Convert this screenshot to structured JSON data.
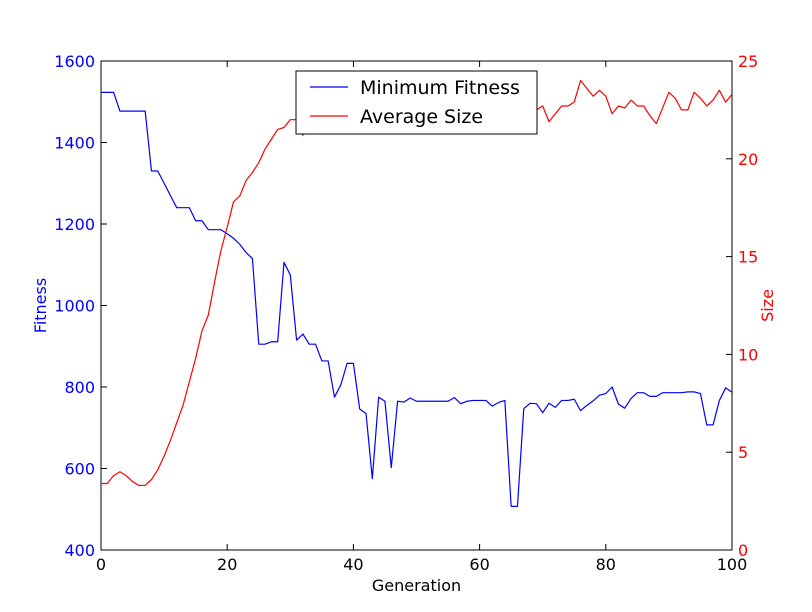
{
  "chart_data": {
    "type": "line",
    "xlabel": "Generation",
    "ylabel_left": "Fitness",
    "ylabel_right": "Size",
    "xlim": [
      0,
      100
    ],
    "ylim_left": [
      400,
      1600
    ],
    "ylim_right": [
      0,
      25
    ],
    "x_ticks": [
      0,
      20,
      40,
      60,
      80,
      100
    ],
    "y_ticks_left": [
      400,
      600,
      800,
      1000,
      1200,
      1400,
      1600
    ],
    "y_ticks_right": [
      0,
      5,
      10,
      15,
      20,
      25
    ],
    "grid": false,
    "legend_position": "top-center",
    "colors": {
      "left_axis": "#0000ff",
      "right_axis": "#ff0000",
      "frame": "#000000"
    },
    "series": [
      {
        "name": "Minimum Fitness",
        "axis": "left",
        "color": "#0000ff",
        "x": [
          0,
          1,
          2,
          3,
          4,
          5,
          6,
          7,
          8,
          9,
          10,
          11,
          12,
          13,
          14,
          15,
          16,
          17,
          18,
          19,
          20,
          21,
          22,
          23,
          24,
          25,
          26,
          27,
          28,
          29,
          30,
          31,
          32,
          33,
          34,
          35,
          36,
          37,
          38,
          39,
          40,
          41,
          42,
          43,
          44,
          45,
          46,
          47,
          48,
          49,
          50,
          51,
          52,
          53,
          54,
          55,
          56,
          57,
          58,
          59,
          60,
          61,
          62,
          63,
          64,
          65,
          66,
          67,
          68,
          69,
          70,
          71,
          72,
          73,
          74,
          75,
          76,
          77,
          78,
          79,
          80,
          81,
          82,
          83,
          84,
          85,
          86,
          87,
          88,
          89,
          90,
          91,
          92,
          93,
          94,
          95,
          96,
          97,
          98,
          99,
          100
        ],
        "y": [
          1523,
          1523,
          1523,
          1477,
          1477,
          1477,
          1477,
          1477,
          1330,
          1330,
          1300,
          1270,
          1240,
          1240,
          1240,
          1208,
          1208,
          1186,
          1186,
          1186,
          1176,
          1165,
          1150,
          1130,
          1115,
          905,
          905,
          911,
          911,
          1106,
          1075,
          915,
          930,
          905,
          905,
          864,
          864,
          775,
          805,
          858,
          858,
          746,
          735,
          575,
          775,
          765,
          602,
          765,
          763,
          773,
          765,
          765,
          765,
          765,
          765,
          765,
          774,
          759,
          765,
          767,
          767,
          767,
          753,
          762,
          767,
          507,
          507,
          747,
          760,
          759,
          737,
          760,
          750,
          767,
          767,
          770,
          742,
          755,
          766,
          780,
          784,
          800,
          758,
          748,
          772,
          786,
          786,
          777,
          777,
          786,
          786,
          786,
          786,
          788,
          788,
          784,
          707,
          707,
          767,
          798,
          787
        ]
      },
      {
        "name": "Average Size",
        "axis": "right",
        "color": "#ff0000",
        "x": [
          0,
          1,
          2,
          3,
          4,
          5,
          6,
          7,
          8,
          9,
          10,
          11,
          12,
          13,
          14,
          15,
          16,
          17,
          18,
          19,
          20,
          21,
          22,
          23,
          24,
          25,
          26,
          27,
          28,
          29,
          30,
          31,
          32,
          33,
          34,
          35,
          36,
          37,
          38,
          39,
          40,
          41,
          42,
          43,
          44,
          45,
          46,
          47,
          48,
          49,
          50,
          51,
          52,
          53,
          54,
          55,
          56,
          57,
          58,
          59,
          60,
          61,
          62,
          63,
          64,
          65,
          66,
          67,
          68,
          69,
          70,
          71,
          72,
          73,
          74,
          75,
          76,
          77,
          78,
          79,
          80,
          81,
          82,
          83,
          84,
          85,
          86,
          87,
          88,
          89,
          90,
          91,
          92,
          93,
          94,
          95,
          96,
          97,
          98,
          99,
          100
        ],
        "y": [
          3.4,
          3.4,
          3.8,
          4.0,
          3.8,
          3.5,
          3.3,
          3.3,
          3.6,
          4.1,
          4.8,
          5.6,
          6.5,
          7.4,
          8.6,
          9.8,
          11.2,
          12.0,
          13.7,
          15.3,
          16.5,
          17.8,
          18.1,
          18.9,
          19.3,
          19.8,
          20.5,
          21.0,
          21.5,
          21.6,
          22.0,
          22.0,
          21.2,
          22.6,
          22.4,
          23.1,
          22.9,
          23.3,
          23.4,
          23.7,
          23.9,
          23.8,
          24.1,
          23.9,
          22.8,
          21.8,
          21.6,
          21.8,
          22.4,
          22.4,
          22.5,
          22.5,
          23.0,
          23.1,
          22.7,
          22.6,
          22.8,
          22.9,
          23.1,
          23.2,
          23.0,
          22.8,
          23.3,
          23.8,
          24.2,
          23.1,
          23.2,
          22.6,
          22.6,
          22.5,
          22.7,
          21.9,
          22.3,
          22.7,
          22.7,
          22.9,
          24.0,
          23.6,
          23.2,
          23.5,
          23.2,
          22.3,
          22.7,
          22.6,
          23.0,
          22.7,
          22.7,
          22.2,
          21.8,
          22.6,
          23.4,
          23.1,
          22.5,
          22.5,
          23.4,
          23.1,
          22.7,
          23.0,
          23.5,
          22.9,
          23.3
        ]
      }
    ]
  }
}
